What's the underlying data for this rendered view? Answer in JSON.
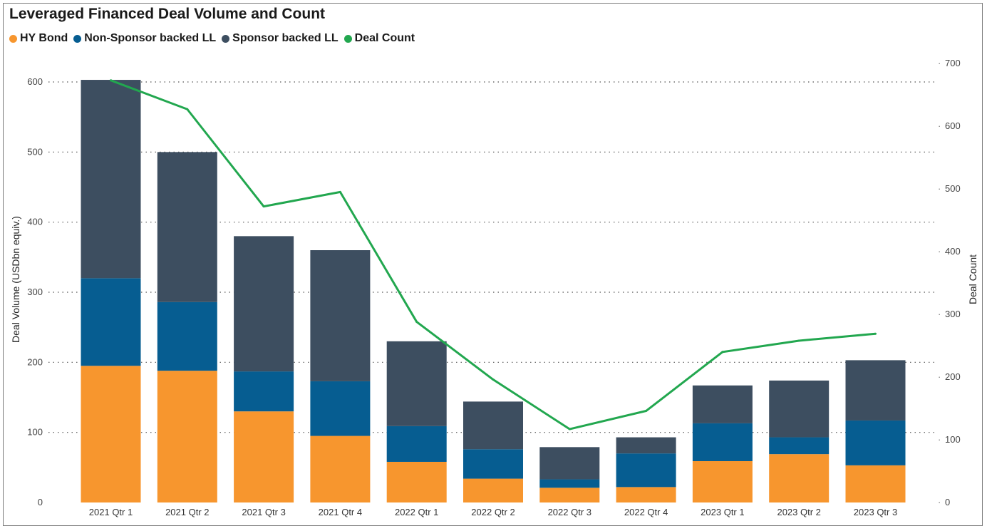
{
  "title": "Leveraged Financed Deal Volume and Count",
  "legend": [
    {
      "label": "HY Bond",
      "color": "#F7962E"
    },
    {
      "label": "Non-Sponsor backed LL",
      "color": "#065D91"
    },
    {
      "label": "Sponsor backed LL",
      "color": "#3D4E60"
    },
    {
      "label": "Deal Count",
      "color": "#22A74F"
    }
  ],
  "chart_data": {
    "type": "bar",
    "stacked": true,
    "title": "Leveraged Financed Deal Volume and Count",
    "categories": [
      "2021 Qtr 1",
      "2021 Qtr 2",
      "2021 Qtr 3",
      "2021 Qtr 4",
      "2022 Qtr 1",
      "2022 Qtr 2",
      "2022 Qtr 3",
      "2022 Qtr 4",
      "2023 Qtr 1",
      "2023 Qtr 2",
      "2023 Qtr 3"
    ],
    "series": [
      {
        "name": "HY Bond",
        "color": "#F7962E",
        "values": [
          195,
          188,
          130,
          95,
          58,
          34,
          21,
          22,
          59,
          69,
          53
        ]
      },
      {
        "name": "Non-Sponsor backed LL",
        "color": "#065D91",
        "values": [
          125,
          98,
          57,
          78,
          51,
          42,
          12,
          48,
          54,
          24,
          64
        ]
      },
      {
        "name": "Sponsor backed LL",
        "color": "#3D4E60",
        "values": [
          283,
          214,
          193,
          187,
          121,
          68,
          46,
          23,
          54,
          81,
          86
        ]
      }
    ],
    "line_series": {
      "name": "Deal Count",
      "color": "#22A74F",
      "axis": "right",
      "values": [
        673,
        627,
        472,
        495,
        288,
        196,
        117,
        146,
        240,
        258,
        269
      ]
    },
    "ylabel": "Deal Volume (USDbn equiv.)",
    "y2label": "Deal Count",
    "ylim": [
      0,
      600
    ],
    "y2lim": [
      0,
      700
    ],
    "yticks": [
      0,
      100,
      200,
      300,
      400,
      500,
      600
    ],
    "y2ticks": [
      0,
      100,
      200,
      300,
      400,
      500,
      600,
      700
    ],
    "grid": "horizontal dotted",
    "legend_position": "top-left"
  }
}
